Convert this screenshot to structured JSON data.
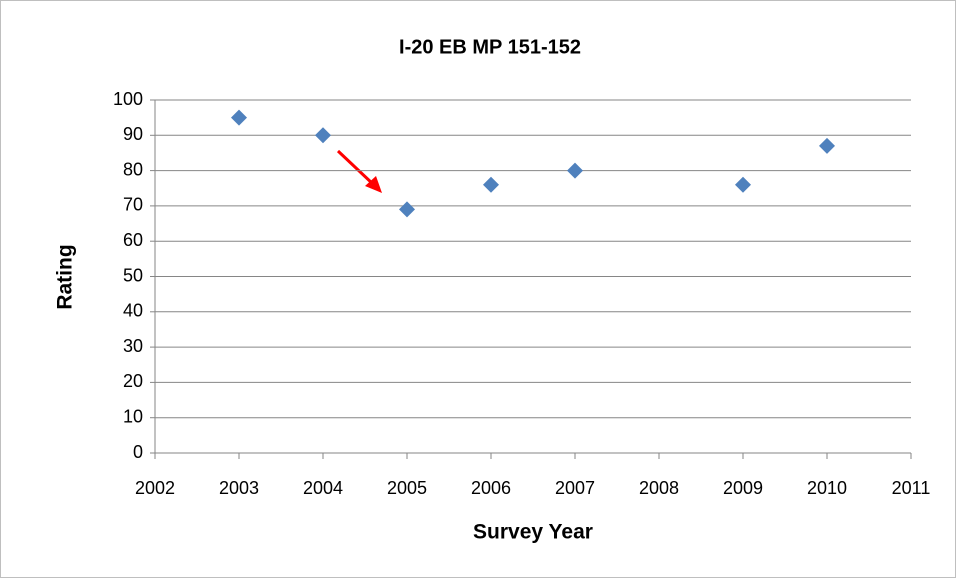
{
  "chart_data": {
    "type": "scatter",
    "title": "I-20 EB MP 151-152",
    "x_label": "Survey Year",
    "y_label": "Rating",
    "series": [
      {
        "name": "Rating",
        "color": "#4f81bd",
        "x": [
          2003,
          2004,
          2005,
          2006,
          2007,
          2009,
          2010
        ],
        "values": [
          95,
          90,
          69,
          76,
          80,
          76,
          87
        ]
      }
    ],
    "xlim": [
      2002,
      2011
    ],
    "xticks": [
      2002,
      2003,
      2004,
      2005,
      2006,
      2007,
      2008,
      2009,
      2010,
      2011
    ],
    "ylim": [
      0,
      100
    ],
    "yticks": [
      0,
      10,
      20,
      30,
      40,
      50,
      60,
      70,
      80,
      90,
      100
    ],
    "grid": true
  }
}
